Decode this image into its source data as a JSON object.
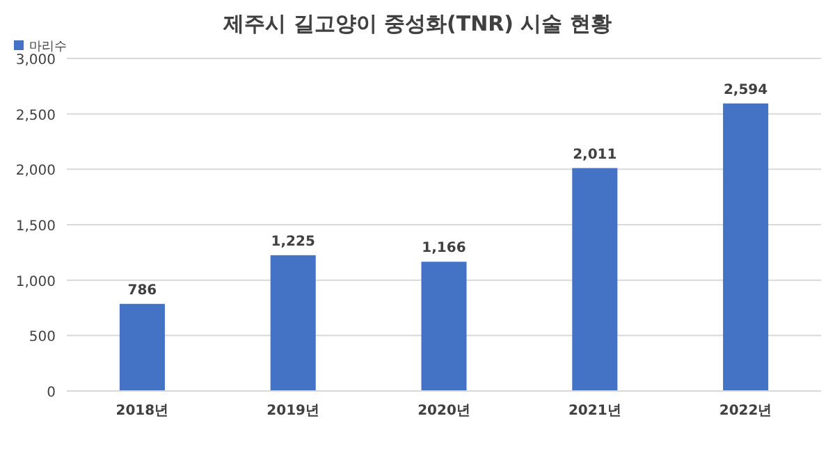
{
  "chart_data": {
    "type": "bar",
    "title": "제주시 길고양이 중성화(TNR) 시술 현황",
    "categories": [
      "2018년",
      "2019년",
      "2020년",
      "2021년",
      "2022년"
    ],
    "series": [
      {
        "name": "마리수",
        "color": "#4472c4",
        "values": [
          786,
          1225,
          1166,
          2011,
          2594
        ],
        "value_labels": [
          "786",
          "1,225",
          "1,166",
          "2,011",
          "2,594"
        ]
      }
    ],
    "ylim": [
      0,
      3000
    ],
    "yticks": [
      {
        "value": 0,
        "label": "0"
      },
      {
        "value": 500,
        "label": "500"
      },
      {
        "value": 1000,
        "label": "1,000"
      },
      {
        "value": 1500,
        "label": "1,500"
      },
      {
        "value": 2000,
        "label": "2,000"
      },
      {
        "value": 2500,
        "label": "2,500"
      },
      {
        "value": 3000,
        "label": "3,000"
      }
    ],
    "grid": "y",
    "legend": "top left"
  }
}
